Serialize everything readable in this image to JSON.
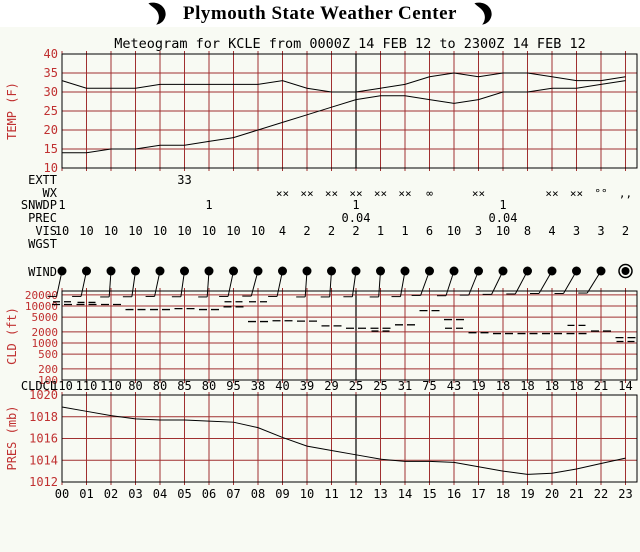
{
  "header": {
    "title": "Plymouth State Weather Center"
  },
  "subtitle": "Meteogram for KCLE from 0000Z 14 FEB 12 to 2300Z 14 FEB 12",
  "colors": {
    "grid": "#a03030",
    "tick_label": "#c03030",
    "line": "#000000",
    "background": "#f8faf3",
    "header_bg": "#ffffff"
  },
  "hour_labels": [
    "00",
    "01",
    "02",
    "03",
    "04",
    "05",
    "06",
    "07",
    "08",
    "09",
    "10",
    "11",
    "12",
    "13",
    "14",
    "15",
    "16",
    "17",
    "18",
    "19",
    "20",
    "21",
    "22",
    "23"
  ],
  "chart_data": [
    {
      "id": "temperature-chart",
      "type": "line",
      "ylabel": "TEMP (F)",
      "ylim": [
        10,
        40
      ],
      "yticks": [
        40,
        35,
        30,
        25,
        20,
        15,
        10
      ],
      "grid": true,
      "series": [
        {
          "name": "temperature",
          "values": [
            33,
            31,
            31,
            31,
            32,
            32,
            32,
            32,
            32,
            33,
            31,
            30,
            30,
            31,
            32,
            34,
            35,
            34,
            35,
            35,
            34,
            33,
            33,
            34
          ]
        },
        {
          "name": "dewpoint",
          "values": [
            14,
            14,
            15,
            15,
            16,
            16,
            17,
            18,
            20,
            22,
            24,
            26,
            28,
            29,
            29,
            28,
            27,
            28,
            30,
            30,
            31,
            31,
            32,
            33
          ]
        }
      ]
    },
    {
      "id": "cloud-chart",
      "type": "scatter",
      "ylabel": "CLD (ft)",
      "yscale": "log",
      "ylim": [
        100,
        26000
      ],
      "yticks": [
        20000,
        10000,
        5000,
        2000,
        1000,
        500,
        200,
        100
      ],
      "grid": true,
      "ceiling_ft": [
        11000,
        11000,
        11000,
        8000,
        8000,
        8500,
        8000,
        9500,
        3800,
        4000,
        3900,
        2900,
        2500,
        2500,
        3100,
        7500,
        4300,
        1900,
        1800,
        1800,
        1800,
        1800,
        2100,
        1400
      ],
      "extra_layers": [
        [
          0,
          13000
        ],
        [
          1,
          12500
        ],
        [
          7,
          13000
        ],
        [
          8,
          13000
        ],
        [
          13,
          2100
        ],
        [
          16,
          2500
        ],
        [
          21,
          3000
        ],
        [
          23,
          1100
        ]
      ]
    },
    {
      "id": "pressure-chart",
      "type": "line",
      "ylabel": "PRES (mb)",
      "ylim": [
        1012,
        1020
      ],
      "yticks": [
        1020,
        1018,
        1016,
        1014,
        1012
      ],
      "grid": true,
      "series": [
        {
          "name": "pressure",
          "values": [
            1018.9,
            1018.5,
            1018.1,
            1017.8,
            1017.7,
            1017.7,
            1017.6,
            1017.5,
            1017.0,
            1016.1,
            1015.3,
            1014.9,
            1014.5,
            1014.1,
            1013.9,
            1013.9,
            1013.8,
            1013.4,
            1013.0,
            1012.7,
            1012.8,
            1013.2,
            1013.7,
            1014.2
          ]
        }
      ]
    }
  ],
  "rows": {
    "extt": {
      "label": "EXTT",
      "entries": [
        {
          "hour": 5,
          "value": "33"
        }
      ]
    },
    "wx": {
      "label": "WX",
      "entries": [
        {
          "hour": 9,
          "value": "××"
        },
        {
          "hour": 10,
          "value": "××"
        },
        {
          "hour": 11,
          "value": "××"
        },
        {
          "hour": 12,
          "value": "××"
        },
        {
          "hour": 13,
          "value": "××"
        },
        {
          "hour": 14,
          "value": "××"
        },
        {
          "hour": 15,
          "value": "∞"
        },
        {
          "hour": 17,
          "value": "××"
        },
        {
          "hour": 20,
          "value": "××"
        },
        {
          "hour": 21,
          "value": "××"
        },
        {
          "hour": 22,
          "value": "°°"
        },
        {
          "hour": 23,
          "value": ",,"
        }
      ]
    },
    "snwdp": {
      "label": "SNWDP",
      "entries": [
        {
          "hour": 0,
          "value": "1"
        },
        {
          "hour": 6,
          "value": "1"
        },
        {
          "hour": 12,
          "value": "1"
        },
        {
          "hour": 18,
          "value": "1"
        }
      ]
    },
    "prec": {
      "label": "PREC",
      "entries": [
        {
          "hour": 12,
          "value": "0.04"
        },
        {
          "hour": 18,
          "value": "0.04"
        }
      ]
    },
    "vis": {
      "label": "VIS",
      "values": [
        "10",
        "10",
        "10",
        "10",
        "10",
        "10",
        "10",
        "10",
        "10",
        "4",
        "2",
        "2",
        "2",
        "1",
        "1",
        "6",
        "10",
        "3",
        "10",
        "8",
        "4",
        "3",
        "3",
        "2"
      ]
    },
    "wgst": {
      "label": "WGST",
      "entries": []
    },
    "wind": {
      "label": "WIND",
      "barbs": [
        {
          "lean": 12
        },
        {
          "lean": 12
        },
        {
          "lean": 4
        },
        {
          "lean": 8
        },
        {
          "lean": 12
        },
        {
          "lean": 8
        },
        {
          "lean": 4
        },
        {
          "lean": 12
        },
        {
          "lean": 15
        },
        {
          "lean": 12
        },
        {
          "lean": 4
        },
        {
          "lean": 4
        },
        {
          "lean": 8
        },
        {
          "lean": 4
        },
        {
          "lean": 10
        },
        {
          "lean": 20
        },
        {
          "lean": 18
        },
        {
          "lean": 22
        },
        {
          "lean": 26
        },
        {
          "lean": 28
        },
        {
          "lean": 30
        },
        {
          "lean": 30
        },
        {
          "lean": 32
        },
        {
          "calm": true
        }
      ]
    },
    "cldcl": {
      "label": "CLDCL",
      "values": [
        "110",
        "110",
        "110",
        "80",
        "80",
        "85",
        "80",
        "95",
        "38",
        "40",
        "39",
        "29",
        "25",
        "25",
        "31",
        "75",
        "43",
        "19",
        "18",
        "18",
        "18",
        "18",
        "21",
        "14"
      ]
    }
  }
}
